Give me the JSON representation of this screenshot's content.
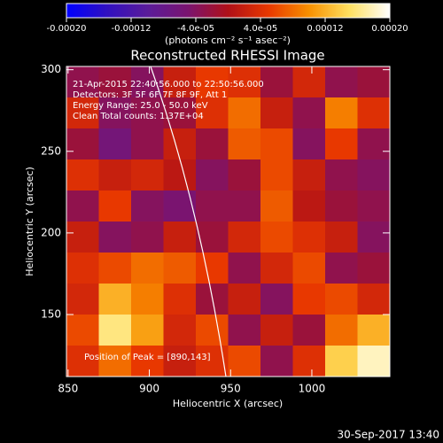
{
  "chart_data": {
    "type": "heatmap",
    "title": "Reconstructed RHESSI Image",
    "x_label": "Heliocentric X (arcsec)",
    "y_label": "Heliocentric Y (arcsec)",
    "xlim": [
      849,
      1048
    ],
    "ylim": [
      112,
      302
    ],
    "xticks": [
      850,
      900,
      950,
      1000
    ],
    "yticks": [
      150,
      200,
      250,
      300
    ],
    "colorbar": {
      "label": "(photons cm⁻² s⁻¹ asec⁻²)",
      "clim": [
        -0.0002,
        0.0002
      ],
      "ticks": [
        {
          "value": -0.0002,
          "label": "-0.00020"
        },
        -0.00012,
        {
          "value": -4e-05,
          "label": "-4.0e-05"
        },
        {
          "value": 4e-05,
          "label": "4.0e-05"
        },
        0.00012,
        {
          "value": 0.0002,
          "label": "0.00020"
        }
      ],
      "colormap": [
        "#0000ff",
        "#3010c0",
        "#5a1c9a",
        "#7a1470",
        "#b01018",
        "#e83800",
        "#f89000",
        "#ffe060",
        "#ffffff"
      ]
    },
    "z": [
      [
        -3e-05,
        -2e-05,
        -4e-05,
        2e-05,
        5e-05,
        4e-05,
        -2e-05,
        3e-05,
        -3e-05,
        -2e-05
      ],
      [
        3e-05,
        -4e-05,
        -3e-05,
        -2e-05,
        4e-05,
        8e-05,
        2e-05,
        -3e-05,
        9e-05,
        4e-05
      ],
      [
        -2e-05,
        -6e-05,
        -3e-05,
        2e-05,
        -2e-05,
        7e-05,
        6e-05,
        -4e-05,
        5e-05,
        -3e-05
      ],
      [
        4e-05,
        2e-05,
        3e-05,
        1e-05,
        -4e-05,
        -2e-05,
        6e-05,
        2e-05,
        -3e-05,
        -4e-05
      ],
      [
        -3e-05,
        5e-05,
        -4e-05,
        -5e-05,
        -3e-05,
        -3e-05,
        7e-05,
        1e-05,
        -2e-05,
        -3e-05
      ],
      [
        2e-05,
        -4e-05,
        -3e-05,
        2e-05,
        -2e-05,
        3e-05,
        6e-05,
        4e-05,
        2e-05,
        -4e-05
      ],
      [
        4e-05,
        6e-05,
        8e-05,
        7e-05,
        5e-05,
        -3e-05,
        3e-05,
        6e-05,
        -3e-05,
        -2e-05
      ],
      [
        3e-05,
        0.00012,
        9e-05,
        4e-05,
        -2e-05,
        2e-05,
        -4e-05,
        5e-05,
        6e-05,
        3e-05
      ],
      [
        6e-05,
        0.00016,
        0.00011,
        3e-05,
        6e-05,
        -3e-05,
        2e-05,
        -2e-05,
        8e-05,
        0.00012
      ],
      [
        4e-05,
        8e-05,
        5e-05,
        2e-05,
        4e-05,
        6e-05,
        -3e-05,
        4e-05,
        0.00014,
        0.00018
      ]
    ],
    "annotations": [
      "21-Apr-2015 22:40:56.000 to 22:50:56.000",
      "Detectors: 3F 5F 6F 7F 8F 9F, Att 1",
      "Energy Range: 25.0 - 50.0 keV",
      "Clean    Total counts: 1.37E+04"
    ],
    "peak_label": "Position of Peak = [890,143]",
    "footer": "30-Sep-2017 13:40"
  }
}
